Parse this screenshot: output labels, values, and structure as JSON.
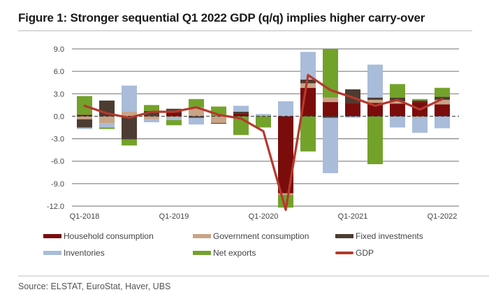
{
  "title": "Figure 1: Stronger sequential Q1 2022 GDP (q/q) implies higher carry-over",
  "source": "Source: ELSTAT, EuroStat, Haver, UBS",
  "chart_data": {
    "type": "bar",
    "subtype": "stacked-bar-with-line",
    "title": "Figure 1: Stronger sequential Q1 2022 GDP (q/q) implies higher carry-over",
    "xlabel": "",
    "ylabel": "",
    "ylim": [
      -12,
      9
    ],
    "yticks": [
      9,
      6,
      3,
      0,
      -3,
      -6,
      -9,
      -12
    ],
    "ytick_labels": [
      "9.0",
      "6.0",
      "3.0",
      "0.0",
      "-3.0",
      "-6.0",
      "-9.0",
      "-12.0"
    ],
    "grid": true,
    "legend_position": "bottom",
    "categories": [
      "Q1-2018",
      "Q2-2018",
      "Q3-2018",
      "Q4-2018",
      "Q1-2019",
      "Q2-2019",
      "Q3-2019",
      "Q4-2019",
      "Q1-2020",
      "Q2-2020",
      "Q3-2020",
      "Q4-2020",
      "Q1-2021",
      "Q2-2021",
      "Q3-2021",
      "Q4-2021",
      "Q1-2022"
    ],
    "xtick_labels": [
      {
        "index": 0,
        "label": "Q1-2018"
      },
      {
        "index": 4,
        "label": "Q1-2019"
      },
      {
        "index": 8,
        "label": "Q1-2020"
      },
      {
        "index": 12,
        "label": "Q1-2021"
      },
      {
        "index": 16,
        "label": "Q1-2022"
      }
    ],
    "series": [
      {
        "name": "Household consumption",
        "kind": "bar",
        "color": "#7b0c0c",
        "values": [
          0.2,
          0.0,
          0.0,
          0.1,
          0.5,
          0.0,
          0.0,
          0.4,
          0.0,
          -10.3,
          3.8,
          1.9,
          1.8,
          1.8,
          1.7,
          1.9,
          1.6
        ]
      },
      {
        "name": "Government consumption",
        "kind": "bar",
        "color": "#c9a487",
        "values": [
          -0.4,
          -0.9,
          0.6,
          -0.4,
          -0.2,
          1.2,
          -0.9,
          0.0,
          0.1,
          -0.2,
          0.6,
          0.6,
          0.0,
          0.4,
          0.3,
          -0.2,
          0.6
        ]
      },
      {
        "name": "Fixed investments",
        "kind": "bar",
        "color": "#4d3c32",
        "values": [
          -1.1,
          2.1,
          -3.1,
          0.6,
          0.5,
          -0.2,
          -0.1,
          0.2,
          0.0,
          0.0,
          0.5,
          -0.2,
          1.8,
          0.3,
          0.5,
          0.2,
          0.4
        ]
      },
      {
        "name": "Inventories",
        "kind": "bar",
        "color": "#a9bcd9",
        "values": [
          -0.2,
          -0.6,
          3.5,
          -0.4,
          -0.3,
          -0.9,
          0.0,
          0.8,
          0.2,
          2.0,
          3.7,
          -7.4,
          -0.2,
          4.4,
          -1.5,
          -2.0,
          -1.6
        ]
      },
      {
        "name": "Net exports",
        "kind": "bar",
        "color": "#73a22b",
        "values": [
          2.5,
          -0.2,
          -0.8,
          0.8,
          -0.7,
          1.1,
          1.3,
          -2.5,
          -1.5,
          -1.7,
          -4.7,
          6.5,
          0.0,
          -6.4,
          1.8,
          0.2,
          1.2
        ]
      },
      {
        "name": "GDP",
        "kind": "line",
        "color": "#b5392d",
        "values": [
          1.4,
          0.4,
          -0.2,
          0.6,
          0.6,
          1.2,
          0.2,
          -0.3,
          -2.0,
          -12.5,
          5.5,
          3.5,
          2.5,
          1.4,
          2.2,
          0.9,
          2.3
        ]
      }
    ]
  },
  "legend": [
    {
      "label": "Household consumption",
      "color": "#7b0c0c",
      "kind": "bar"
    },
    {
      "label": "Government consumption",
      "color": "#c9a487",
      "kind": "bar"
    },
    {
      "label": "Fixed investments",
      "color": "#4d3c32",
      "kind": "bar"
    },
    {
      "label": "Inventories",
      "color": "#a9bcd9",
      "kind": "bar"
    },
    {
      "label": "Net exports",
      "color": "#73a22b",
      "kind": "bar"
    },
    {
      "label": "GDP",
      "color": "#b5392d",
      "kind": "line"
    }
  ]
}
